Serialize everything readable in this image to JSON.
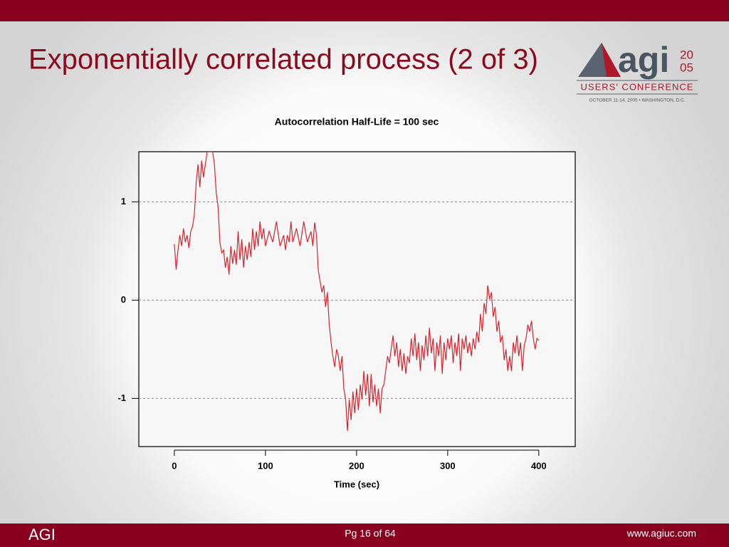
{
  "slide": {
    "title": "Exponentially correlated process (2 of 3)",
    "footer_left": "AGI",
    "footer_center": "Pg 16 of 64",
    "footer_right": "www.agiuc.com"
  },
  "logo": {
    "name": "agi",
    "year_top": "20",
    "year_bottom": "05",
    "event": "USERS' CONFERENCE",
    "dates": "OCTOBER 11-14, 2005 • WASHINGTON, D.C."
  },
  "chart_data": {
    "type": "line",
    "title": "Autocorrelation Half-Life = 100 sec",
    "x_label": "Time (sec)",
    "color": "#e0202a",
    "grid": true,
    "xlim": [
      -39,
      440
    ],
    "xticks": [
      0,
      100,
      200,
      300,
      400
    ],
    "ylim": [
      -1.49,
      1.51
    ],
    "yticks": [
      -1,
      0,
      1
    ],
    "x": [
      0,
      2,
      4,
      6,
      8,
      10,
      12,
      14,
      16,
      18,
      20,
      22,
      24,
      26,
      28,
      30,
      32,
      34,
      36,
      40,
      42,
      44,
      46,
      48,
      50,
      52,
      54,
      56,
      58,
      60,
      62,
      64,
      66,
      68,
      70,
      72,
      74,
      76,
      78,
      80,
      82,
      84,
      86,
      88,
      90,
      92,
      94,
      96,
      98,
      100,
      104,
      108,
      112,
      116,
      120,
      122,
      124,
      126,
      128,
      130,
      134,
      138,
      142,
      146,
      150,
      152,
      154,
      156,
      158,
      160,
      162,
      164,
      166,
      168,
      170,
      172,
      174,
      176,
      178,
      180,
      182,
      184,
      186,
      188,
      190,
      192,
      194,
      196,
      198,
      200,
      202,
      204,
      206,
      208,
      210,
      212,
      214,
      216,
      218,
      220,
      222,
      224,
      226,
      228,
      230,
      232,
      234,
      236,
      238,
      240,
      242,
      244,
      246,
      248,
      250,
      252,
      254,
      256,
      258,
      260,
      262,
      264,
      266,
      268,
      270,
      272,
      274,
      276,
      278,
      280,
      282,
      284,
      286,
      288,
      290,
      292,
      294,
      296,
      298,
      300,
      302,
      304,
      306,
      308,
      310,
      312,
      314,
      316,
      318,
      320,
      322,
      324,
      326,
      328,
      330,
      332,
      334,
      336,
      338,
      340,
      342,
      344,
      346,
      348,
      350,
      352,
      354,
      356,
      358,
      360,
      362,
      364,
      366,
      368,
      370,
      372,
      374,
      376,
      378,
      380,
      382,
      384,
      386,
      388,
      390,
      392,
      394,
      396,
      398,
      400
    ],
    "values": [
      0.57,
      0.31,
      0.51,
      0.66,
      0.55,
      0.73,
      0.59,
      0.66,
      0.53,
      0.7,
      0.75,
      0.88,
      1.2,
      1.38,
      1.15,
      1.42,
      1.25,
      1.38,
      1.51,
      1.51,
      1.51,
      1.38,
      1.09,
      0.95,
      0.59,
      0.48,
      0.51,
      0.33,
      0.44,
      0.26,
      0.55,
      0.37,
      0.51,
      0.36,
      0.7,
      0.41,
      0.62,
      0.33,
      0.55,
      0.41,
      0.59,
      0.44,
      0.73,
      0.51,
      0.7,
      0.55,
      0.8,
      0.62,
      0.73,
      0.55,
      0.7,
      0.59,
      0.8,
      0.55,
      0.66,
      0.51,
      0.66,
      0.59,
      0.8,
      0.59,
      0.73,
      0.55,
      0.8,
      0.59,
      0.7,
      0.55,
      0.79,
      0.66,
      0.3,
      0.19,
      0.08,
      0.15,
      -0.07,
      0.08,
      -0.25,
      -0.43,
      -0.57,
      -0.68,
      -0.5,
      -0.57,
      -0.72,
      -0.57,
      -0.9,
      -1.01,
      -1.33,
      -1.01,
      -1.22,
      -0.93,
      -1.15,
      -0.9,
      -1.12,
      -0.86,
      -1.01,
      -0.72,
      -0.97,
      -0.75,
      -1.08,
      -0.75,
      -1.04,
      -0.86,
      -1.08,
      -0.9,
      -1.15,
      -0.9,
      -0.86,
      -0.72,
      -0.57,
      -0.64,
      -0.5,
      -0.36,
      -0.57,
      -0.43,
      -0.68,
      -0.5,
      -0.72,
      -0.54,
      -0.75,
      -0.57,
      -0.64,
      -0.39,
      -0.57,
      -0.34,
      -0.61,
      -0.43,
      -0.72,
      -0.46,
      -0.61,
      -0.36,
      -0.57,
      -0.28,
      -0.54,
      -0.39,
      -0.72,
      -0.43,
      -0.57,
      -0.36,
      -0.75,
      -0.43,
      -0.61,
      -0.39,
      -0.5,
      -0.36,
      -0.64,
      -0.43,
      -0.57,
      -0.34,
      -0.72,
      -0.39,
      -0.5,
      -0.36,
      -0.54,
      -0.43,
      -0.57,
      -0.39,
      -0.5,
      -0.32,
      -0.43,
      -0.14,
      -0.32,
      -0.03,
      -0.14,
      0.15,
      0.01,
      0.08,
      -0.17,
      -0.07,
      -0.32,
      -0.21,
      -0.43,
      -0.36,
      -0.61,
      -0.5,
      -0.72,
      -0.57,
      -0.72,
      -0.43,
      -0.54,
      -0.36,
      -0.57,
      -0.43,
      -0.72,
      -0.46,
      -0.39,
      -0.25,
      -0.32,
      -0.21,
      -0.39,
      -0.5,
      -0.39,
      -0.41
    ]
  }
}
